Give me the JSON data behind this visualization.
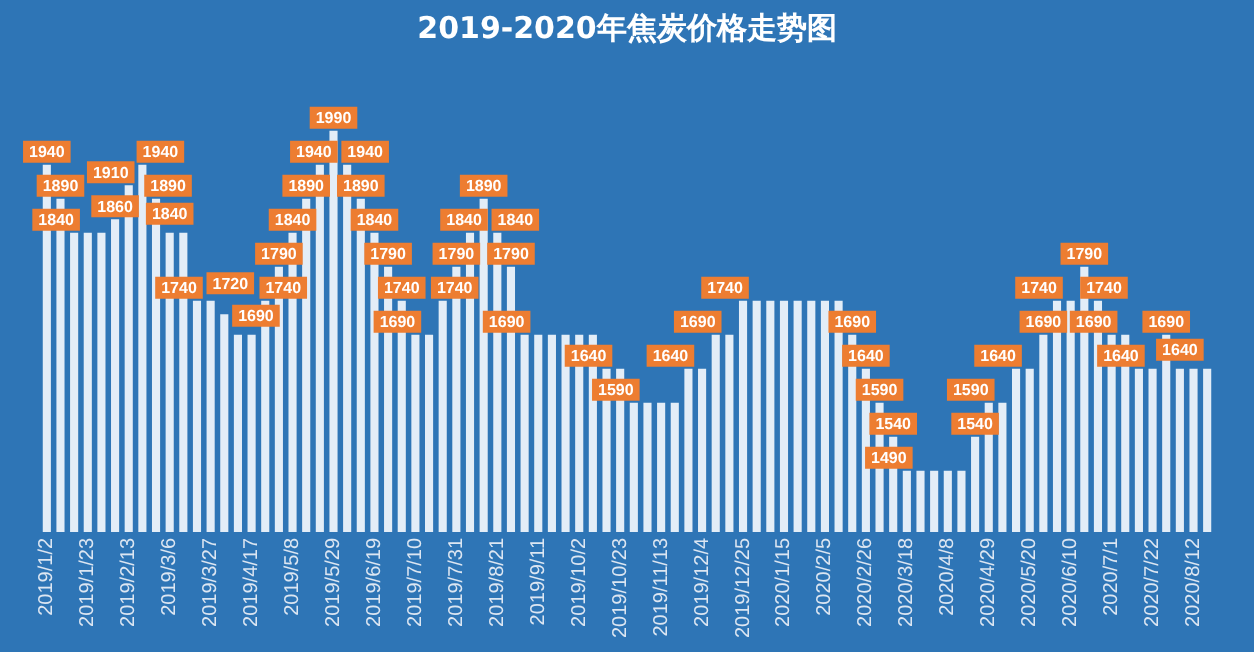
{
  "chart_data": {
    "type": "bar",
    "title": "2019-2020年焦炭价格走势图",
    "categories": [
      "2019/1/2",
      null,
      null,
      "2019/1/23",
      null,
      null,
      "2019/2/13",
      null,
      null,
      "2019/3/6",
      null,
      null,
      "2019/3/27",
      null,
      null,
      "2019/4/17",
      null,
      null,
      "2019/5/8",
      null,
      null,
      "2019/5/29",
      null,
      null,
      "2019/6/19",
      null,
      null,
      "2019/7/10",
      null,
      null,
      "2019/7/31",
      null,
      null,
      "2019/8/21",
      null,
      null,
      "2019/9/11",
      null,
      null,
      "2019/10/2",
      null,
      null,
      "2019/10/23",
      null,
      null,
      "2019/11/13",
      null,
      null,
      "2019/12/4",
      null,
      null,
      "2019/12/25",
      null,
      null,
      "2020/1/15",
      null,
      null,
      "2020/2/5",
      null,
      null,
      "2020/2/26",
      null,
      null,
      "2020/3/18",
      null,
      null,
      "2020/4/8",
      null,
      null,
      "2020/4/29",
      null,
      null,
      "2020/5/20",
      null,
      null,
      "2020/6/10",
      null,
      null,
      "2020/7/1",
      null,
      null,
      "2020/7/22",
      null,
      null,
      "2020/8/12",
      null
    ],
    "values": [
      1940,
      1890,
      1840,
      1840,
      1840,
      1860,
      1910,
      1940,
      1890,
      1840,
      1840,
      1740,
      1740,
      1720,
      1690,
      1690,
      1740,
      1790,
      1840,
      1890,
      1940,
      1990,
      1940,
      1890,
      1840,
      1790,
      1740,
      1690,
      1690,
      1740,
      1790,
      1840,
      1890,
      1840,
      1790,
      1690,
      1690,
      1690,
      1690,
      1690,
      1690,
      1640,
      1640,
      1590,
      1590,
      1590,
      1590,
      1640,
      1640,
      1690,
      1690,
      1740,
      1740,
      1740,
      1740,
      1740,
      1740,
      1740,
      1740,
      1690,
      1640,
      1590,
      1540,
      1490,
      1490,
      1490,
      1490,
      1490,
      1540,
      1590,
      1590,
      1640,
      1640,
      1690,
      1740,
      1740,
      1790,
      1740,
      1690,
      1690,
      1640,
      1640,
      1690,
      1640,
      1640,
      1640
    ],
    "value_labels": [
      "1940",
      "1890",
      "1840",
      null,
      null,
      "1860",
      "1910",
      "1940",
      "1890",
      "1840",
      null,
      "1740",
      null,
      "1720",
      "1690",
      null,
      "1740",
      "1790",
      "1840",
      "1890",
      "1940",
      "1990",
      "1940",
      "1890",
      "1840",
      "1790",
      "1740",
      "1690",
      null,
      "1740",
      "1790",
      "1840",
      "1890",
      "1840",
      "1790",
      "1690",
      null,
      null,
      null,
      null,
      null,
      "1640",
      null,
      "1590",
      null,
      null,
      null,
      "1640",
      null,
      "1690",
      null,
      "1740",
      null,
      null,
      null,
      null,
      null,
      null,
      null,
      "1690",
      "1640",
      "1590",
      "1540",
      "1490",
      null,
      null,
      null,
      null,
      "1540",
      "1590",
      null,
      "1640",
      null,
      "1690",
      "1740",
      null,
      "1790",
      "1740",
      "1690",
      null,
      "1640",
      null,
      "1690",
      "1640",
      null,
      null
    ],
    "color": "#e3edf7",
    "grid": false,
    "legend": false
  }
}
